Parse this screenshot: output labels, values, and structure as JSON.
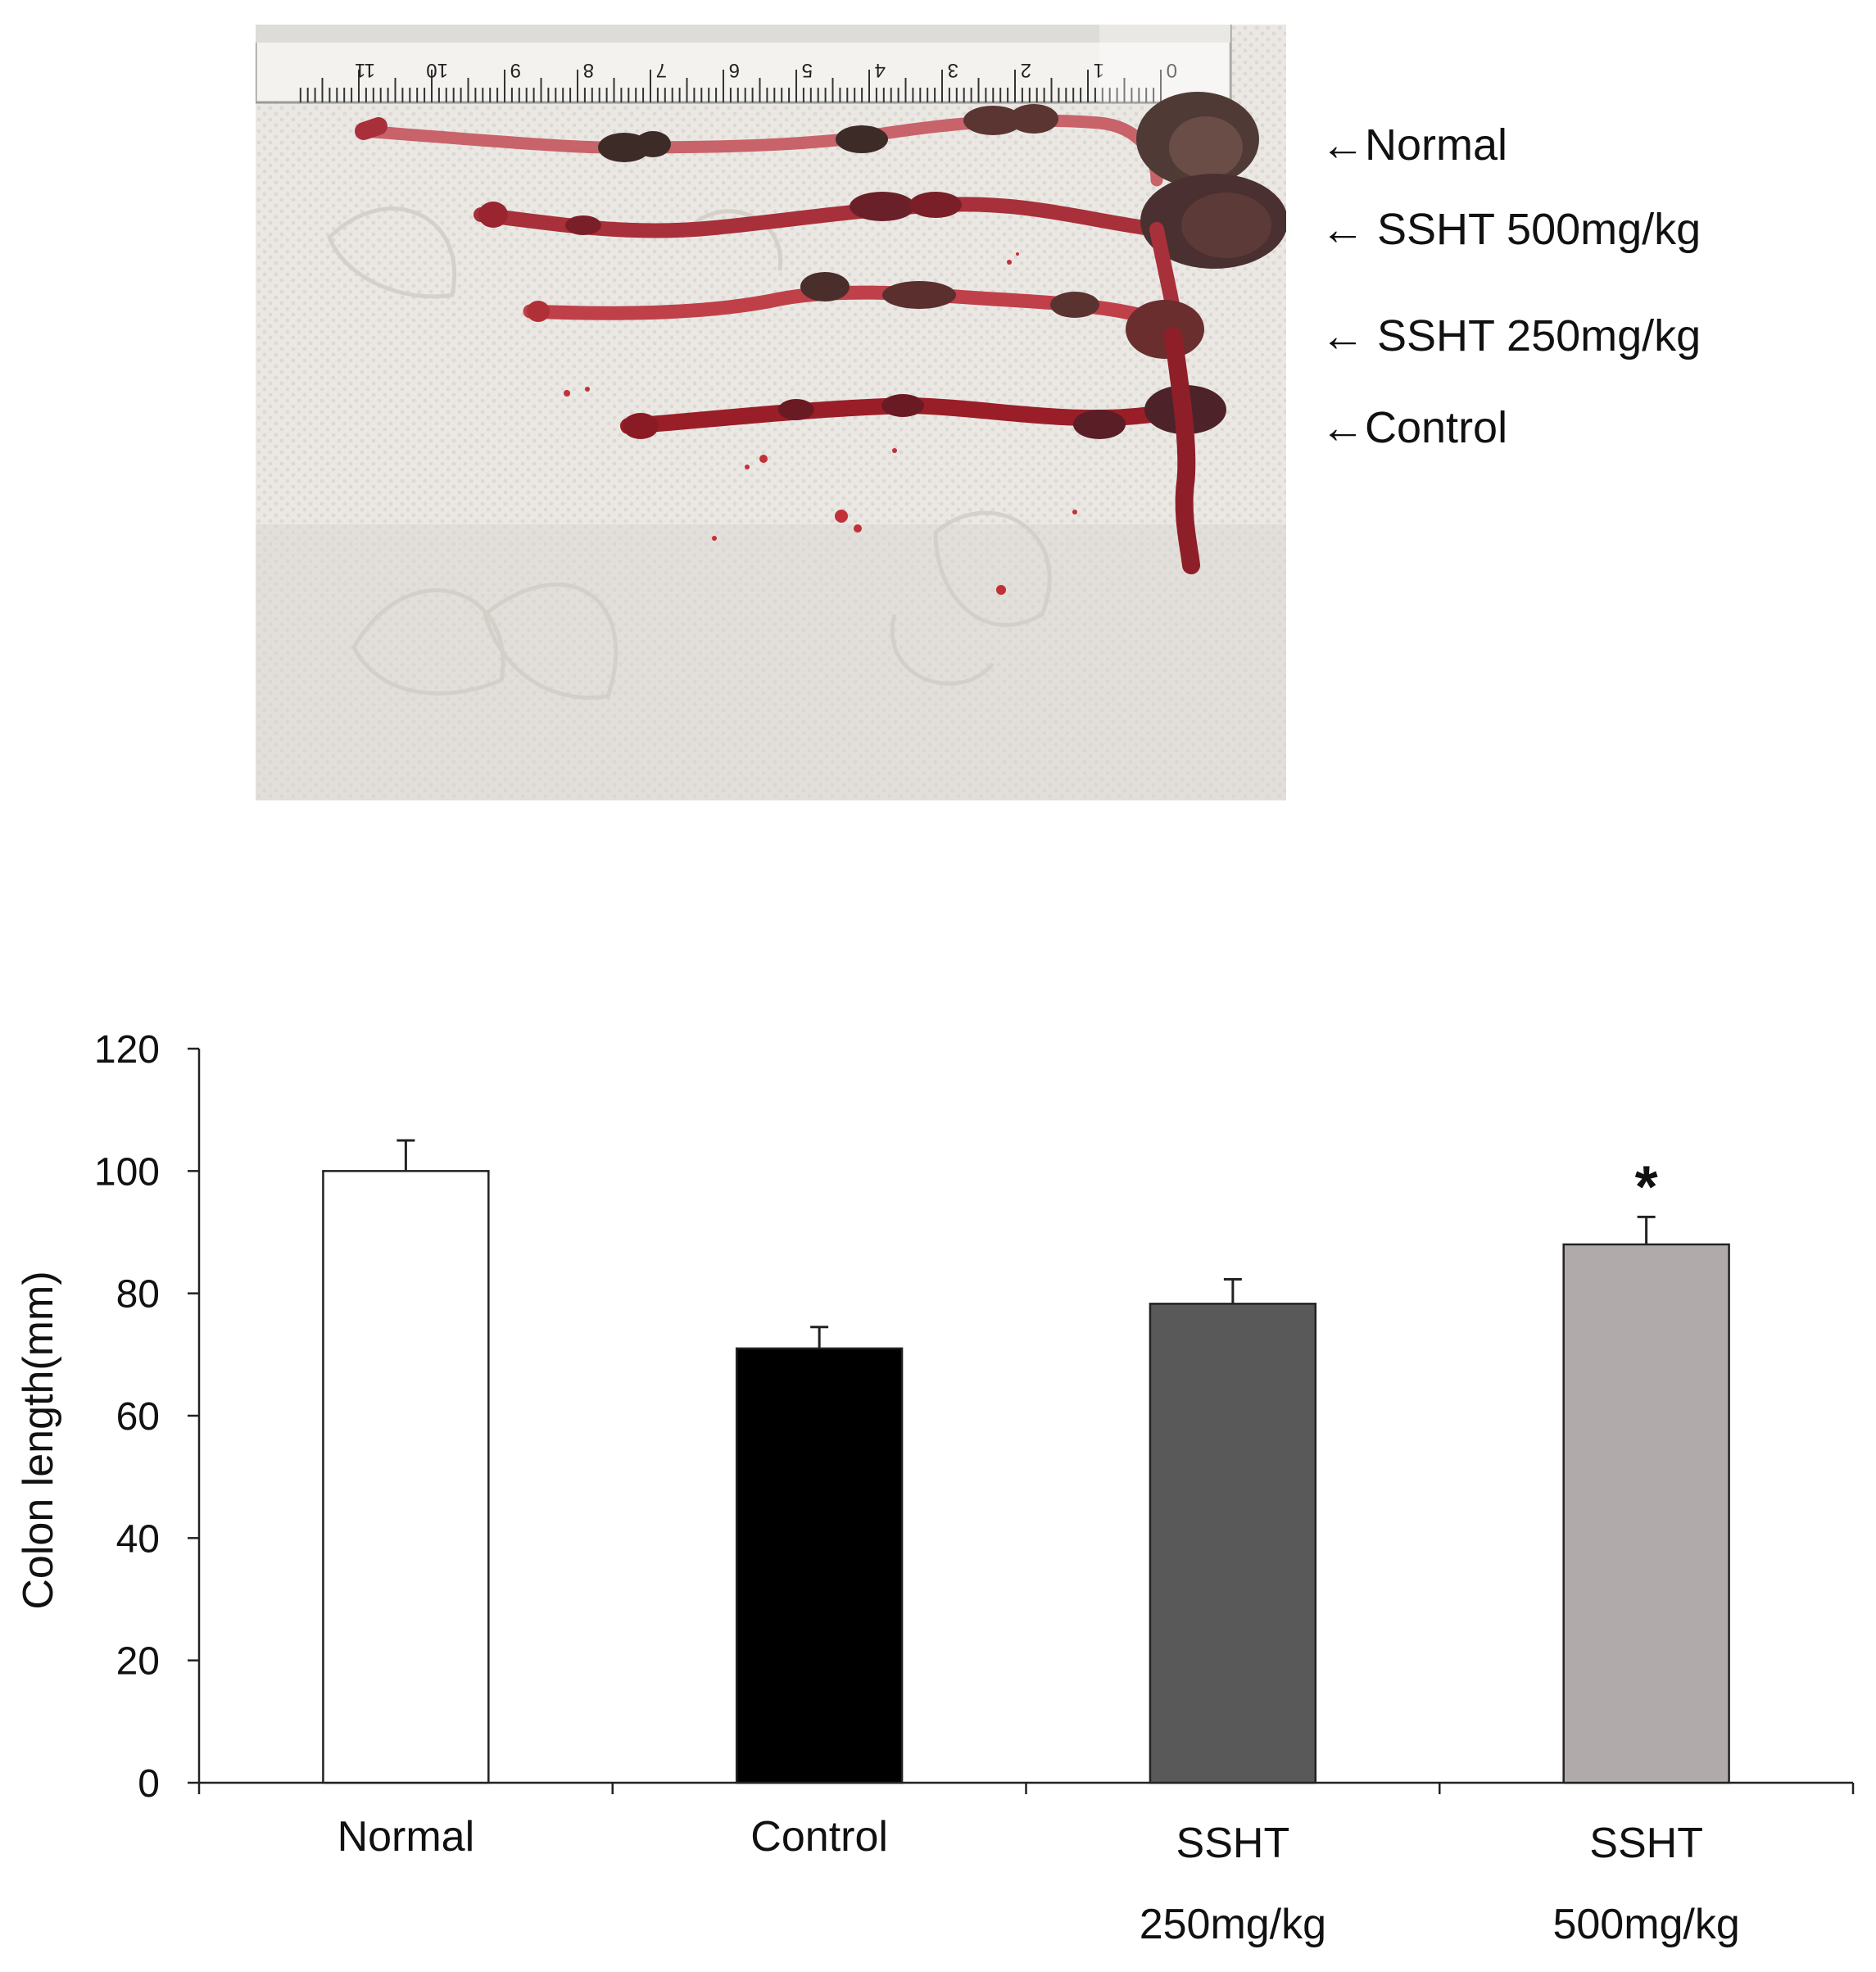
{
  "photo": {
    "ruler_numbers": [
      "11",
      "10",
      "9",
      "8",
      "7",
      "6",
      "5",
      "4",
      "3",
      "2",
      "1",
      "0"
    ],
    "labels": [
      "←Normal",
      "← SSHT 500mg/kg",
      "← SSHT 250mg/kg",
      "←Control"
    ],
    "colors": {
      "tissue": "#8e1f24",
      "tissue_light": "#c9505a",
      "stool": "#3c2a27",
      "towel": "#e9e6e2"
    }
  },
  "chart_data": {
    "type": "bar",
    "categories": [
      "Normal",
      "Control",
      "SSHT 250mg/kg",
      "SSHT 500mg/kg"
    ],
    "category_lines": [
      [
        "Normal"
      ],
      [
        "Control"
      ],
      [
        "SSHT",
        "250mg/kg"
      ],
      [
        "SSHT",
        "500mg/kg"
      ]
    ],
    "values": [
      100,
      71,
      78.3,
      88
    ],
    "errors": [
      5,
      3.5,
      4,
      4.5
    ],
    "annotations": [
      "",
      "",
      "",
      "*"
    ],
    "colors": [
      "#ffffff",
      "#000000",
      "#595959",
      "#b0abaa"
    ],
    "ylabel": "Colon length(mm)",
    "xlabel": "",
    "ylim": [
      0,
      120
    ],
    "yticks": [
      "0",
      "20",
      "40",
      "60",
      "80",
      "100",
      "120"
    ],
    "grid": false
  }
}
